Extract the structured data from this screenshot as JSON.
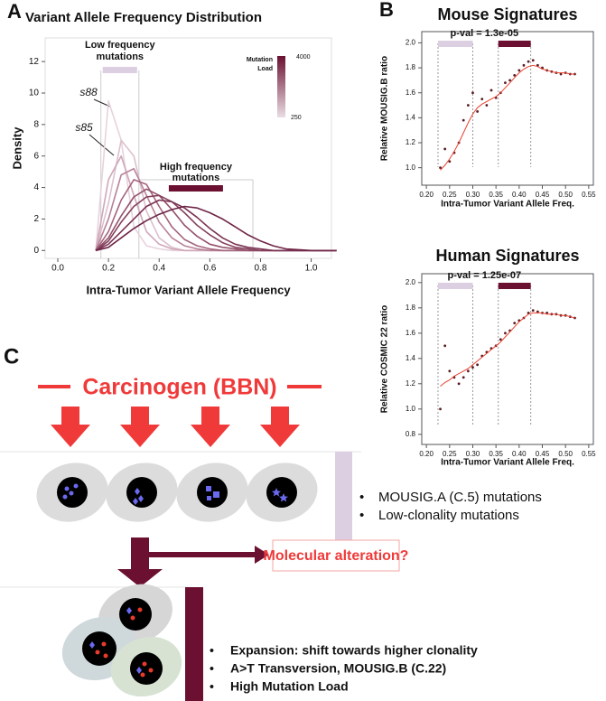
{
  "panel_labels": [
    "A",
    "B",
    "C"
  ],
  "chart_data": [
    {
      "type": "line",
      "title": "Variant Allele Frequency Distribution",
      "x_label": "Intra-Tumor Variant Allele Frequency",
      "y_label": "Density",
      "x": [
        0.15,
        0.2,
        0.25,
        0.3,
        0.35,
        0.4,
        0.45,
        0.5,
        0.55,
        0.6,
        0.65,
        0.7,
        0.75,
        0.8,
        0.85,
        0.9,
        1.0,
        1.1
      ],
      "series": [
        {
          "color": "#e6d3dc",
          "values": [
            0,
            9.5,
            7,
            1.5,
            0.3,
            0.1,
            0,
            0,
            0,
            0,
            0,
            0,
            0,
            0,
            0,
            0,
            0,
            0
          ]
        },
        {
          "color": "#dcc0cd",
          "values": [
            0,
            3,
            7,
            6,
            2.5,
            0.8,
            0.2,
            0,
            0,
            0,
            0,
            0,
            0,
            0,
            0,
            0,
            0,
            0
          ]
        },
        {
          "color": "#cfa7b8",
          "values": [
            0,
            4.5,
            6,
            3.5,
            1.2,
            0.4,
            0.1,
            0,
            0,
            0,
            0,
            0,
            0,
            0,
            0,
            0,
            0,
            0
          ]
        },
        {
          "color": "#b98196",
          "values": [
            0,
            2,
            4.8,
            5.2,
            3.5,
            1.8,
            0.8,
            0.3,
            0.1,
            0,
            0,
            0,
            0,
            0,
            0,
            0,
            0,
            0
          ]
        },
        {
          "color": "#a4637c",
          "values": [
            0,
            1.2,
            3.2,
            4.5,
            4.2,
            2.8,
            1.5,
            0.7,
            0.3,
            0.1,
            0,
            0,
            0,
            0,
            0,
            0,
            0,
            0
          ]
        },
        {
          "color": "#93506a",
          "values": [
            0,
            0.8,
            2.2,
            3.4,
            3.9,
            3.5,
            2.6,
            1.6,
            0.9,
            0.4,
            0.2,
            0.1,
            0,
            0,
            0,
            0,
            0,
            0
          ]
        },
        {
          "color": "#84405c",
          "values": [
            0,
            0.6,
            1.8,
            2.8,
            3.4,
            3.5,
            3.1,
            2.4,
            1.6,
            1.0,
            0.5,
            0.2,
            0.1,
            0,
            0,
            0,
            0,
            0
          ]
        },
        {
          "color": "#7a3353",
          "values": [
            0,
            0.4,
            1.2,
            2.0,
            2.8,
            3.2,
            3.1,
            2.7,
            2.1,
            1.4,
            0.8,
            0.4,
            0.2,
            0.1,
            0,
            0,
            0,
            0
          ]
        },
        {
          "color": "#6e2546",
          "values": [
            0,
            0.2,
            0.8,
            1.4,
            1.9,
            2.3,
            2.6,
            2.8,
            2.7,
            2.4,
            2.0,
            1.5,
            1.0,
            0.6,
            0.3,
            0.1,
            0,
            0
          ]
        }
      ],
      "xlim": [
        -0.05,
        1.08
      ],
      "ylim": [
        -0.5,
        13.5
      ],
      "xticks": [
        {
          "value": 0,
          "label": "0.0"
        },
        0.2,
        0.4,
        0.6,
        0.8,
        {
          "value": 1,
          "label": "1.0"
        }
      ],
      "yticks": [
        0,
        2,
        4,
        6,
        8,
        10,
        12
      ],
      "sample_labels": [
        "s88",
        "s85"
      ],
      "low_band": [
        0.17,
        0.32
      ],
      "low_label": [
        "Low frequency",
        "mutations"
      ],
      "low_color": "#dccfe2",
      "high_band": [
        0.32,
        0.77
      ],
      "high_label": [
        "High frequency",
        "mutations"
      ],
      "high_color": "#6b1030",
      "colorbar": {
        "label": [
          "Mutation",
          "Load"
        ],
        "max": 4000,
        "min": 250,
        "colors": [
          "#6b1030",
          "#eadde4"
        ]
      }
    },
    {
      "type": "scatter",
      "title": "Mouse Signatures",
      "x_label": "Intra-Tumor Variant Allele Freq.",
      "y_label": "Relative MOUSIG.B ratio",
      "x": [
        0.23,
        0.24,
        0.25,
        0.26,
        0.27,
        0.28,
        0.29,
        0.3,
        0.31,
        0.32,
        0.33,
        0.34,
        0.35,
        0.36,
        0.37,
        0.38,
        0.39,
        0.4,
        0.41,
        0.42,
        0.43,
        0.44,
        0.45,
        0.46,
        0.47,
        0.48,
        0.49,
        0.5,
        0.51,
        0.52
      ],
      "series": [
        {
          "mode": "markers",
          "color": "#5a1a22",
          "values": [
            1.0,
            1.15,
            1.05,
            1.12,
            1.2,
            1.38,
            1.5,
            1.6,
            1.45,
            1.55,
            1.5,
            1.62,
            1.56,
            1.6,
            1.68,
            1.7,
            1.74,
            1.78,
            1.82,
            1.85,
            1.86,
            1.82,
            1.8,
            1.78,
            1.77,
            1.76,
            1.75,
            1.76,
            1.75,
            1.75
          ]
        },
        {
          "mode": "line",
          "color": "#e8412f",
          "values": [
            0.98,
            1.02,
            1.07,
            1.13,
            1.2,
            1.28,
            1.36,
            1.43,
            1.48,
            1.51,
            1.53,
            1.55,
            1.57,
            1.6,
            1.64,
            1.68,
            1.72,
            1.76,
            1.79,
            1.81,
            1.82,
            1.81,
            1.79,
            1.78,
            1.77,
            1.76,
            1.76,
            1.76,
            1.75,
            1.75
          ]
        }
      ],
      "xlim": [
        0.19,
        0.56
      ],
      "ylim": [
        0.86,
        2.09
      ],
      "xticks": [
        {
          "value": 0.2,
          "label": "0.20"
        },
        0.25,
        {
          "value": 0.3,
          "label": "0.30"
        },
        0.35,
        {
          "value": 0.4,
          "label": "0.40"
        },
        0.45,
        {
          "value": 0.5,
          "label": "0.50"
        },
        0.55
      ],
      "yticks": [
        {
          "value": 1,
          "label": "1.0"
        },
        1.2,
        1.4,
        1.6,
        1.8,
        {
          "value": 2,
          "label": "2.0"
        }
      ],
      "pval": "p-val = 1.3e-05",
      "low_band": [
        0.225,
        0.3
      ],
      "low_color": "#dccfe2",
      "high_band": [
        0.355,
        0.425
      ],
      "high_color": "#6b1030"
    },
    {
      "type": "scatter",
      "title": "Human Signatures",
      "x_label": "Intra-Tumor Variant Allele Freq.",
      "y_label": "Relative COSMIC 22 ratio",
      "x": [
        0.23,
        0.24,
        0.25,
        0.26,
        0.27,
        0.28,
        0.29,
        0.3,
        0.31,
        0.32,
        0.33,
        0.34,
        0.35,
        0.36,
        0.37,
        0.38,
        0.39,
        0.4,
        0.41,
        0.42,
        0.43,
        0.44,
        0.45,
        0.46,
        0.47,
        0.48,
        0.49,
        0.5,
        0.51,
        0.52
      ],
      "series": [
        {
          "mode": "markers",
          "color": "#5a1a22",
          "values": [
            1.0,
            1.5,
            1.3,
            1.25,
            1.2,
            1.25,
            1.3,
            1.33,
            1.35,
            1.42,
            1.45,
            1.48,
            1.5,
            1.55,
            1.6,
            1.62,
            1.68,
            1.7,
            1.72,
            1.76,
            1.78,
            1.77,
            1.76,
            1.76,
            1.75,
            1.75,
            1.74,
            1.74,
            1.73,
            1.72
          ]
        },
        {
          "mode": "line",
          "color": "#e8412f",
          "values": [
            1.18,
            1.21,
            1.23,
            1.26,
            1.28,
            1.3,
            1.32,
            1.35,
            1.38,
            1.41,
            1.44,
            1.47,
            1.5,
            1.53,
            1.57,
            1.61,
            1.65,
            1.69,
            1.72,
            1.75,
            1.76,
            1.76,
            1.76,
            1.75,
            1.75,
            1.75,
            1.74,
            1.74,
            1.73,
            1.72
          ]
        }
      ],
      "xlim": [
        0.19,
        0.56
      ],
      "ylim": [
        0.72,
        2.07
      ],
      "xticks": [
        {
          "value": 0.2,
          "label": "0.20"
        },
        0.25,
        {
          "value": 0.3,
          "label": "0.30"
        },
        0.35,
        {
          "value": 0.4,
          "label": "0.40"
        },
        0.45,
        {
          "value": 0.5,
          "label": "0.50"
        },
        0.55
      ],
      "yticks": [
        0.8,
        {
          "value": 1,
          "label": "1.0"
        },
        1.2,
        1.4,
        1.6,
        1.8,
        {
          "value": 2,
          "label": "2.0"
        }
      ],
      "pval": "p-val = 1.25e-07",
      "low_band": [
        0.225,
        0.3
      ],
      "low_color": "#dccfe2",
      "high_band": [
        0.355,
        0.425
      ],
      "high_color": "#6b1030"
    }
  ],
  "diagram": {
    "carcinogen": "Carcinogen (BBN)",
    "bullets_low": [
      "MOUSIG.A (C.5) mutations",
      "Low-clonality mutations"
    ],
    "question": "Molecular alteration?",
    "bullets_high": [
      "Expansion: shift towards higher clonality",
      "A>T Transversion, MOUSIG.B (C.22)",
      "High Mutation Load"
    ]
  }
}
